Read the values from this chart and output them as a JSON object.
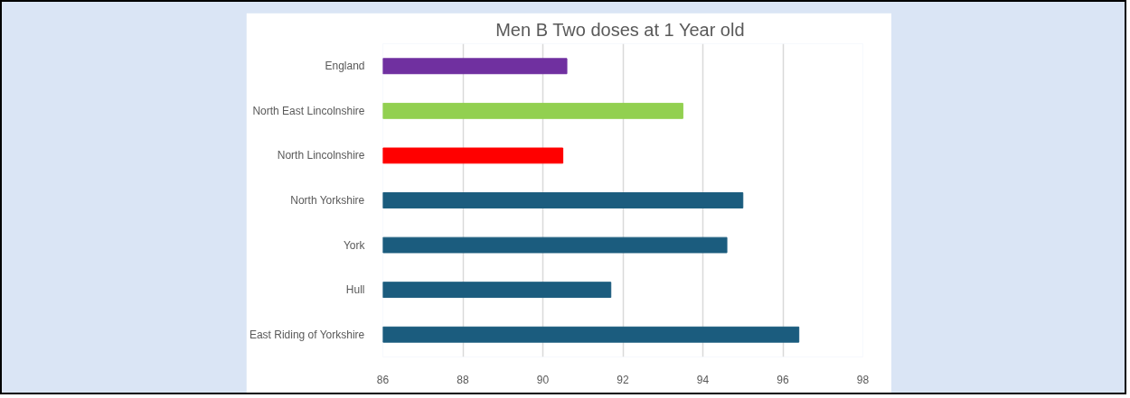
{
  "chart_data": {
    "type": "bar",
    "orientation": "horizontal",
    "title": "Men B  Two doses at 1 Year old",
    "categories": [
      "England",
      "North East Lincolnshire",
      "North Lincolnshire",
      "North Yorkshire",
      "York",
      "Hull",
      "East Riding of Yorkshire"
    ],
    "values": [
      90.6,
      93.5,
      90.5,
      95.0,
      94.6,
      91.7,
      96.4
    ],
    "colors": [
      "#7030a0",
      "#92d050",
      "#ff0000",
      "#1b5c7e",
      "#1b5c7e",
      "#1b5c7e",
      "#1b5c7e"
    ],
    "xlim": [
      86,
      98
    ],
    "xticks": [
      86,
      88,
      90,
      92,
      94,
      96,
      98
    ],
    "grid": "x"
  }
}
